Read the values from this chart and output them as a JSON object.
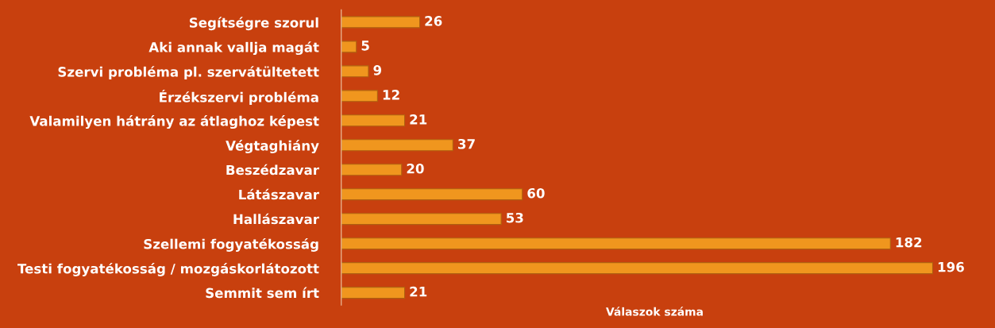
{
  "chart_data": {
    "type": "bar",
    "orientation": "horizontal",
    "xlabel": "Válaszok száma",
    "categories": [
      "Segítségre szorul",
      "Aki annak vallja magát",
      "Szervi probléma pl. szervátültetett",
      "Érzékszervi probléma",
      "Valamilyen hátrány az átlaghoz képest",
      "Végtaghiány",
      "Beszédzavar",
      "Látászavar",
      "Hallászavar",
      "Szellemi fogyatékosság",
      "Testi fogyatékosság / mozgáskorlátozott",
      "Semmit sem írt"
    ],
    "values": [
      26,
      5,
      9,
      12,
      21,
      37,
      20,
      60,
      53,
      182,
      196,
      21
    ],
    "color": "#f0961e",
    "data_labels": true,
    "grid": false,
    "legend": false
  }
}
